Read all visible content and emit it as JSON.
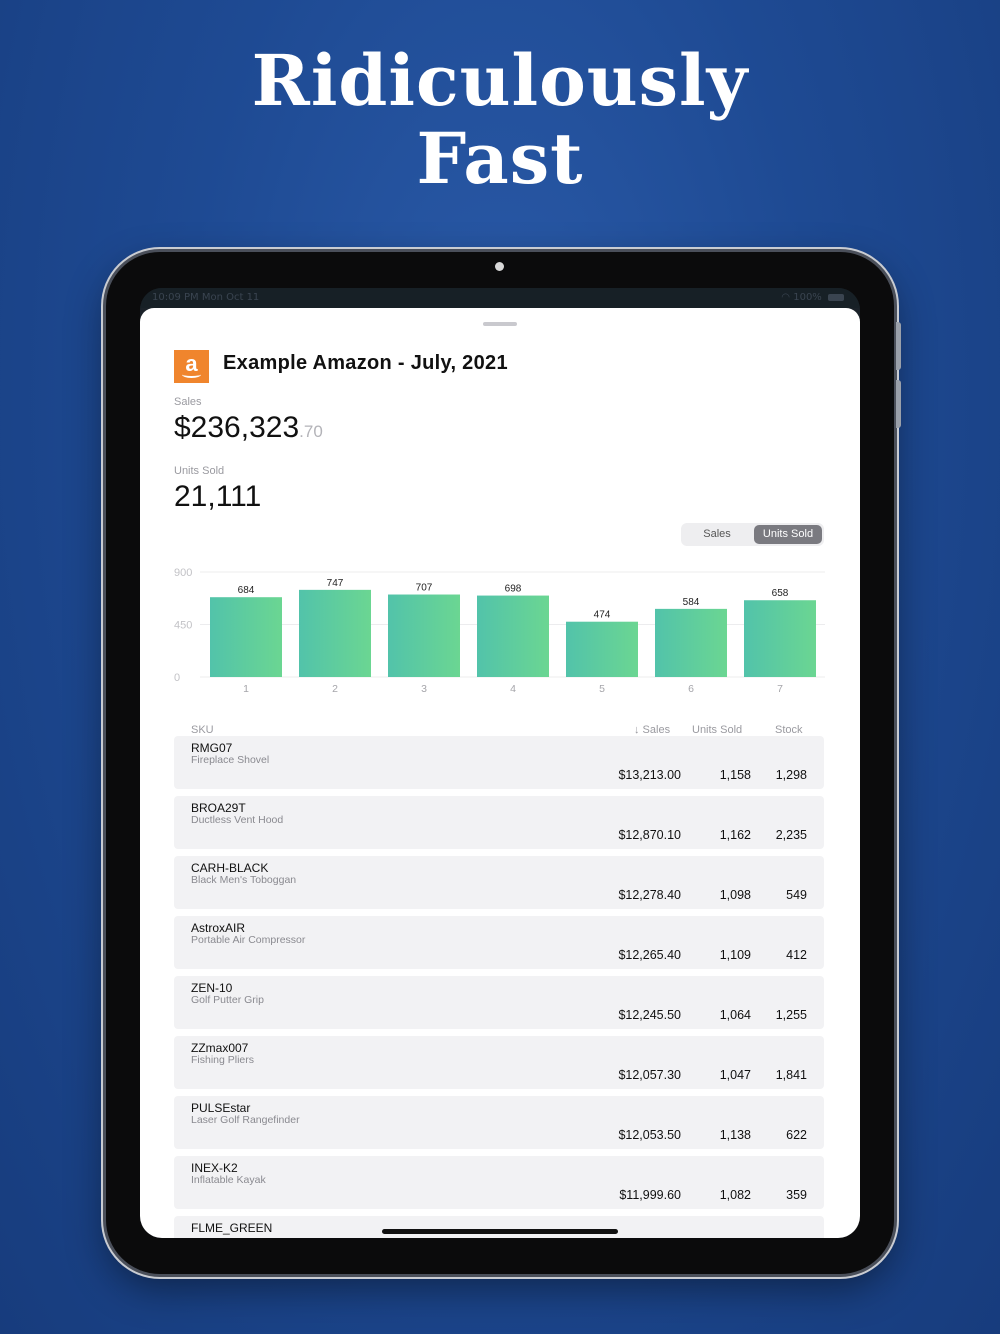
{
  "headline": {
    "line1": "Ridiculously",
    "line2": "Fast"
  },
  "statusbar": {
    "time": "10:09 PM  Mon Oct 11",
    "battery": "100%"
  },
  "store": {
    "logo_letter": "a",
    "title": "Example Amazon - July, 2021"
  },
  "summary": {
    "sales_label": "Sales",
    "sales_whole": "$236,323",
    "sales_cents": ".70",
    "units_label": "Units Sold",
    "units_value": "21,111"
  },
  "segment": {
    "options": [
      "Sales",
      "Units Sold"
    ],
    "selected": "Units Sold"
  },
  "chart_data": {
    "type": "bar",
    "categories": [
      "1",
      "2",
      "3",
      "4",
      "5",
      "6",
      "7"
    ],
    "values": [
      684,
      747,
      707,
      698,
      474,
      584,
      658
    ],
    "yticks": [
      "900",
      "450",
      "0"
    ],
    "ylim": [
      0,
      900
    ],
    "grid": true,
    "colors": {
      "bar_start": "#52c3aa",
      "bar_end": "#6bd692"
    }
  },
  "table": {
    "headers": {
      "sku": "SKU",
      "sales": "↓ Sales",
      "units": "Units Sold",
      "stock": "Stock"
    },
    "rows": [
      {
        "sku": "RMG07",
        "desc": "Fireplace Shovel",
        "sales": "$13,213.00",
        "units": "1,158",
        "stock": "1,298"
      },
      {
        "sku": "BROA29T",
        "desc": "Ductless Vent Hood",
        "sales": "$12,870.10",
        "units": "1,162",
        "stock": "2,235"
      },
      {
        "sku": "CARH-BLACK",
        "desc": "Black Men's Toboggan",
        "sales": "$12,278.40",
        "units": "1,098",
        "stock": "549"
      },
      {
        "sku": "AstroxAIR",
        "desc": "Portable Air Compressor",
        "sales": "$12,265.40",
        "units": "1,109",
        "stock": "412"
      },
      {
        "sku": "ZEN-10",
        "desc": "Golf Putter Grip",
        "sales": "$12,245.50",
        "units": "1,064",
        "stock": "1,255"
      },
      {
        "sku": "ZZmax007",
        "desc": "Fishing Pliers",
        "sales": "$12,057.30",
        "units": "1,047",
        "stock": "1,841"
      },
      {
        "sku": "PULSEstar",
        "desc": "Laser Golf Rangefinder",
        "sales": "$12,053.50",
        "units": "1,138",
        "stock": "622"
      },
      {
        "sku": "INEX-K2",
        "desc": "Inflatable Kayak",
        "sales": "$11,999.60",
        "units": "1,082",
        "stock": "359"
      },
      {
        "sku": "FLME_GREEN",
        "desc": "",
        "sales": "",
        "units": "",
        "stock": ""
      }
    ]
  }
}
